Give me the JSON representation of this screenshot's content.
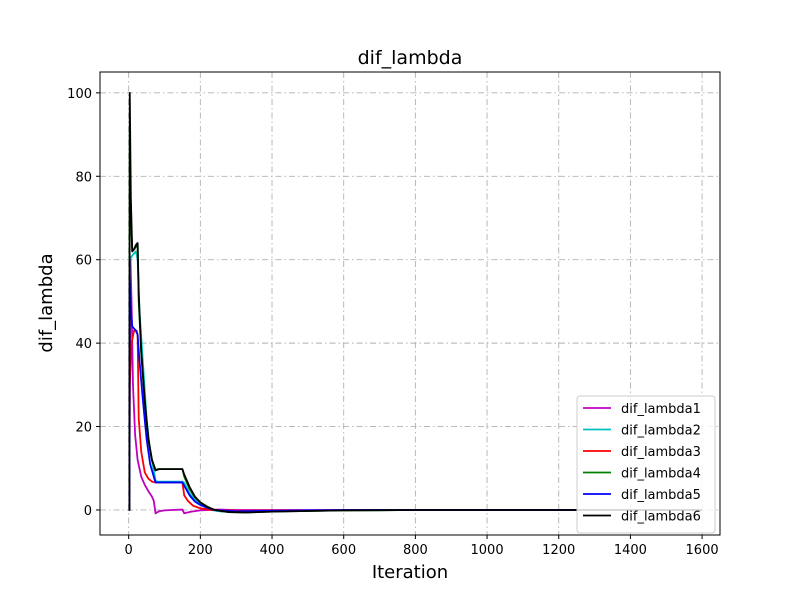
{
  "chart_data": {
    "type": "line",
    "title": "dif_lambda",
    "xlabel": "Iteration",
    "ylabel": "dif_lambda",
    "xlim": [
      -80,
      1650
    ],
    "ylim": [
      -6,
      105
    ],
    "xticks": [
      0,
      200,
      400,
      600,
      800,
      1000,
      1200,
      1400,
      1600
    ],
    "yticks": [
      0,
      20,
      40,
      60,
      80,
      100
    ],
    "grid": true,
    "grid_style": "dash-dot",
    "legend_position": "lower-right",
    "series": [
      {
        "name": "dif_lambda1",
        "color": "#bf00bf",
        "points": [
          [
            0,
            0
          ],
          [
            2,
            0
          ],
          [
            3,
            25
          ],
          [
            5,
            60
          ],
          [
            8,
            50
          ],
          [
            12,
            30
          ],
          [
            18,
            18
          ],
          [
            25,
            12
          ],
          [
            35,
            8
          ],
          [
            45,
            6
          ],
          [
            55,
            4.5
          ],
          [
            65,
            3.2
          ],
          [
            70,
            2.2
          ],
          [
            75,
            -0.8
          ],
          [
            85,
            -0.3
          ],
          [
            100,
            -0.1
          ],
          [
            120,
            0
          ],
          [
            150,
            0.1
          ],
          [
            155,
            -0.8
          ],
          [
            175,
            -0.4
          ],
          [
            200,
            -0.1
          ],
          [
            250,
            0.1
          ],
          [
            300,
            0
          ],
          [
            500,
            0
          ],
          [
            1000,
            0
          ],
          [
            1600,
            0
          ]
        ]
      },
      {
        "name": "dif_lambda2",
        "color": "#00bfbf",
        "points": [
          [
            0,
            0
          ],
          [
            2,
            0
          ],
          [
            3,
            60
          ],
          [
            10,
            61
          ],
          [
            20,
            62
          ],
          [
            25,
            60
          ],
          [
            30,
            48
          ],
          [
            40,
            35
          ],
          [
            50,
            22
          ],
          [
            60,
            14
          ],
          [
            70,
            9.5
          ],
          [
            75,
            7
          ],
          [
            80,
            6.8
          ],
          [
            100,
            6.8
          ],
          [
            150,
            6.8
          ],
          [
            155,
            6.5
          ],
          [
            170,
            4
          ],
          [
            185,
            2.5
          ],
          [
            200,
            1.5
          ],
          [
            215,
            0.6
          ],
          [
            230,
            0
          ],
          [
            260,
            -0.4
          ],
          [
            300,
            -0.5
          ],
          [
            400,
            -0.3
          ],
          [
            600,
            -0.1
          ],
          [
            800,
            0
          ],
          [
            1600,
            0
          ]
        ]
      },
      {
        "name": "dif_lambda3",
        "color": "#ff0000",
        "points": [
          [
            0,
            0
          ],
          [
            2,
            0
          ],
          [
            3,
            30
          ],
          [
            8,
            40
          ],
          [
            15,
            43
          ],
          [
            22,
            43
          ],
          [
            25,
            42
          ],
          [
            28,
            22
          ],
          [
            35,
            14
          ],
          [
            45,
            9
          ],
          [
            55,
            7.5
          ],
          [
            65,
            6.8
          ],
          [
            75,
            6.6
          ],
          [
            100,
            6.6
          ],
          [
            150,
            6.6
          ],
          [
            155,
            3.5
          ],
          [
            165,
            2.2
          ],
          [
            180,
            1
          ],
          [
            200,
            0.4
          ],
          [
            230,
            0
          ],
          [
            300,
            -0.2
          ],
          [
            500,
            -0.1
          ],
          [
            800,
            0
          ],
          [
            1600,
            0
          ]
        ]
      },
      {
        "name": "dif_lambda4",
        "color": "#008000",
        "points": [
          [
            0,
            0
          ],
          [
            2,
            0
          ],
          [
            3,
            92
          ],
          [
            6,
            70
          ],
          [
            10,
            62
          ],
          [
            20,
            63
          ],
          [
            25,
            63.5
          ],
          [
            28,
            50
          ],
          [
            35,
            38
          ],
          [
            45,
            26
          ],
          [
            55,
            17
          ],
          [
            65,
            12
          ],
          [
            75,
            9.5
          ],
          [
            80,
            9.8
          ],
          [
            150,
            9.8
          ],
          [
            155,
            8
          ],
          [
            170,
            5
          ],
          [
            185,
            3
          ],
          [
            200,
            1.8
          ],
          [
            220,
            0.8
          ],
          [
            240,
            0
          ],
          [
            280,
            -0.5
          ],
          [
            320,
            -0.6
          ],
          [
            400,
            -0.4
          ],
          [
            600,
            -0.1
          ],
          [
            800,
            0
          ],
          [
            1600,
            0
          ]
        ]
      },
      {
        "name": "dif_lambda5",
        "color": "#0000ff",
        "points": [
          [
            0,
            0
          ],
          [
            2,
            0
          ],
          [
            3,
            55
          ],
          [
            6,
            48
          ],
          [
            10,
            44
          ],
          [
            20,
            43
          ],
          [
            25,
            42
          ],
          [
            30,
            36
          ],
          [
            40,
            26
          ],
          [
            50,
            17
          ],
          [
            60,
            11
          ],
          [
            70,
            8
          ],
          [
            75,
            6.6
          ],
          [
            100,
            6.6
          ],
          [
            150,
            6.6
          ],
          [
            155,
            5.8
          ],
          [
            170,
            3.5
          ],
          [
            185,
            2
          ],
          [
            200,
            1.2
          ],
          [
            220,
            0.5
          ],
          [
            240,
            0
          ],
          [
            300,
            -0.3
          ],
          [
            400,
            -0.2
          ],
          [
            600,
            0
          ],
          [
            1600,
            0
          ]
        ]
      },
      {
        "name": "dif_lambda6",
        "color": "#000000",
        "points": [
          [
            0,
            0
          ],
          [
            2,
            0
          ],
          [
            3,
            100
          ],
          [
            6,
            75
          ],
          [
            10,
            62
          ],
          [
            15,
            62.5
          ],
          [
            20,
            63.5
          ],
          [
            25,
            64
          ],
          [
            28,
            52
          ],
          [
            35,
            38
          ],
          [
            45,
            26
          ],
          [
            55,
            17
          ],
          [
            65,
            12
          ],
          [
            75,
            9.5
          ],
          [
            85,
            9.8
          ],
          [
            150,
            9.8
          ],
          [
            155,
            8.5
          ],
          [
            170,
            5.5
          ],
          [
            185,
            3.2
          ],
          [
            200,
            1.8
          ],
          [
            220,
            0.7
          ],
          [
            240,
            0
          ],
          [
            280,
            -0.5
          ],
          [
            330,
            -0.6
          ],
          [
            400,
            -0.4
          ],
          [
            600,
            -0.1
          ],
          [
            800,
            0
          ],
          [
            1600,
            0
          ]
        ]
      }
    ]
  }
}
